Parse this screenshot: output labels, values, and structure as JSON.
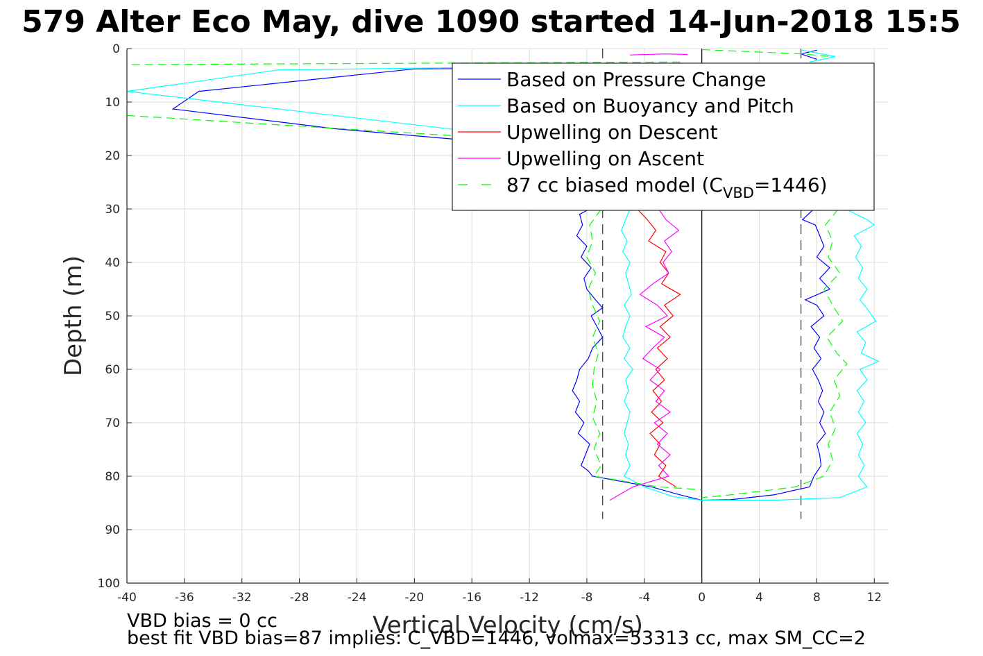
{
  "chart_data": {
    "type": "line",
    "title": "579 Alter Eco May, dive 1090 started 14-Jun-2018 15:5",
    "xlabel": "Vertical Velocity (cm/s)",
    "ylabel": "Depth (m)",
    "xlim": [
      -40,
      13
    ],
    "ylim": [
      0,
      100
    ],
    "y_reversed": true,
    "grid": true,
    "legend_position": "top-right",
    "xticks": [
      -40,
      -36,
      -32,
      -28,
      -24,
      -20,
      -16,
      -12,
      -8,
      -4,
      0,
      4,
      8,
      12
    ],
    "yticks": [
      0,
      10,
      20,
      30,
      40,
      50,
      60,
      70,
      80,
      90,
      100
    ],
    "reference_lines": {
      "vertical_solid": [
        0
      ],
      "vertical_dashed": [
        -6.9,
        6.9
      ]
    },
    "legend": {
      "items": [
        {
          "label": "Based on Pressure Change",
          "color": "#0000ff",
          "dash": "solid"
        },
        {
          "label": "Based on Buoyancy and Pitch",
          "color": "#00ffff",
          "dash": "solid"
        },
        {
          "label": "Upwelling on Descent",
          "color": "#ff0000",
          "dash": "solid"
        },
        {
          "label": "Upwelling on Ascent",
          "color": "#ff00ff",
          "dash": "solid"
        },
        {
          "label_main": "87 cc biased model (C",
          "label_sub": "VBD",
          "label_tail": "=1446)",
          "color": "#00ff00",
          "dash": "dashed"
        }
      ]
    },
    "series": [
      {
        "name": "Based on Pressure Change",
        "color": "#0000ff",
        "dash": "solid",
        "segments": [
          [
            [
              -1.5,
              3.5
            ],
            [
              -20,
              3.8
            ],
            [
              -35,
              8
            ],
            [
              -36.8,
              11.3
            ],
            [
              -25.5,
              15
            ],
            [
              -17,
              17
            ]
          ],
          [
            [
              -7.8,
              30
            ],
            [
              -8.5,
              31
            ],
            [
              -8.3,
              33
            ],
            [
              -8.7,
              35
            ],
            [
              -8.0,
              37
            ],
            [
              -8.4,
              39
            ],
            [
              -7.7,
              41
            ],
            [
              -8.2,
              43
            ],
            [
              -8.0,
              45
            ],
            [
              -7.4,
              47
            ],
            [
              -6.9,
              48.5
            ],
            [
              -7.7,
              50
            ],
            [
              -7.3,
              52
            ],
            [
              -6.9,
              54
            ],
            [
              -7.6,
              56
            ],
            [
              -7.9,
              58
            ],
            [
              -8.5,
              60
            ],
            [
              -8.7,
              62
            ],
            [
              -9.0,
              64
            ],
            [
              -8.5,
              66
            ],
            [
              -8.8,
              68
            ],
            [
              -8.2,
              70
            ],
            [
              -8.6,
              72
            ],
            [
              -7.8,
              74
            ],
            [
              -8.1,
              76
            ],
            [
              -8.4,
              78
            ],
            [
              -7.9,
              79
            ],
            [
              -7.6,
              80
            ],
            [
              -3.5,
              82
            ],
            [
              -1.5,
              83.5
            ],
            [
              0,
              84.5
            ]
          ],
          [
            [
              8.0,
              0.3
            ],
            [
              6.9,
              1.0
            ],
            [
              8.0,
              2.0
            ]
          ],
          [
            [
              7.8,
              30
            ],
            [
              7.0,
              32
            ],
            [
              7.9,
              33
            ],
            [
              8.2,
              35
            ],
            [
              8.5,
              37
            ],
            [
              8.0,
              39
            ],
            [
              8.9,
              41
            ],
            [
              8.2,
              43
            ],
            [
              8.9,
              45
            ],
            [
              7.2,
              47
            ],
            [
              8.0,
              48
            ],
            [
              8.5,
              50
            ],
            [
              7.6,
              52
            ],
            [
              8.2,
              54
            ],
            [
              7.8,
              56
            ],
            [
              8.3,
              58
            ],
            [
              7.7,
              60
            ],
            [
              8.1,
              62
            ],
            [
              8.4,
              64
            ],
            [
              8.1,
              66
            ],
            [
              8.5,
              68
            ],
            [
              8.2,
              70
            ],
            [
              8.6,
              72
            ],
            [
              8.0,
              74
            ],
            [
              8.2,
              76
            ],
            [
              8.3,
              78
            ],
            [
              7.8,
              80
            ],
            [
              7.5,
              82
            ],
            [
              5.0,
              83.5
            ],
            [
              2.0,
              84.4
            ],
            [
              0,
              84.5
            ]
          ]
        ]
      },
      {
        "name": "Based on Buoyancy and Pitch",
        "color": "#00ffff",
        "dash": "solid",
        "segments": [
          [
            [
              -1.5,
              3.0
            ],
            [
              -29.5,
              4.0
            ],
            [
              -40,
              8
            ],
            [
              -16,
              15.5
            ]
          ],
          [
            [
              -5.0,
              30
            ],
            [
              -5.3,
              32
            ],
            [
              -5.6,
              34
            ],
            [
              -5.2,
              36
            ],
            [
              -5.5,
              38
            ],
            [
              -5.0,
              40
            ],
            [
              -5.3,
              42
            ],
            [
              -5.1,
              44
            ],
            [
              -4.9,
              46
            ],
            [
              -5.4,
              48
            ],
            [
              -5.0,
              50
            ],
            [
              -5.3,
              52
            ],
            [
              -5.5,
              54
            ],
            [
              -5.0,
              56
            ],
            [
              -5.4,
              58
            ],
            [
              -4.8,
              60
            ],
            [
              -5.3,
              62
            ],
            [
              -5.1,
              64
            ],
            [
              -5.4,
              66
            ],
            [
              -5.0,
              68
            ],
            [
              -5.2,
              70
            ],
            [
              -5.4,
              72
            ],
            [
              -5.1,
              74
            ],
            [
              -5.3,
              76
            ],
            [
              -5.0,
              78
            ],
            [
              -5.4,
              80
            ],
            [
              -4.0,
              82
            ],
            [
              -2.0,
              83.8
            ],
            [
              0,
              84.5
            ]
          ],
          [
            [
              7.0,
              0.3
            ],
            [
              9.3,
              1.5
            ],
            [
              7.5,
              2.5
            ]
          ],
          [
            [
              10.0,
              30
            ],
            [
              11.5,
              32
            ],
            [
              12.0,
              33
            ],
            [
              10.6,
              35
            ],
            [
              11.1,
              37
            ],
            [
              10.7,
              39
            ],
            [
              11.2,
              41
            ],
            [
              10.9,
              43
            ],
            [
              11.5,
              45
            ],
            [
              11.0,
              47
            ],
            [
              11.6,
              49
            ],
            [
              12.1,
              51
            ],
            [
              10.8,
              53
            ],
            [
              11.4,
              55
            ],
            [
              11.1,
              57
            ],
            [
              12.3,
              58.5
            ],
            [
              11.0,
              60
            ],
            [
              11.5,
              62
            ],
            [
              10.8,
              64
            ],
            [
              11.3,
              66
            ],
            [
              10.9,
              68
            ],
            [
              11.4,
              70
            ],
            [
              10.8,
              72
            ],
            [
              11.2,
              74
            ],
            [
              10.9,
              76
            ],
            [
              11.3,
              78
            ],
            [
              10.9,
              80
            ],
            [
              11.5,
              82
            ],
            [
              9.6,
              84
            ],
            [
              5.0,
              84.5
            ],
            [
              0,
              84.5
            ]
          ]
        ]
      },
      {
        "name": "Upwelling on Descent",
        "color": "#ff0000",
        "dash": "solid",
        "segments": [
          [
            [
              -4.5,
              30
            ],
            [
              -3.8,
              32
            ],
            [
              -3.2,
              34
            ],
            [
              -3.7,
              36
            ],
            [
              -2.5,
              38
            ],
            [
              -2.9,
              40
            ],
            [
              -2.3,
              42
            ],
            [
              -2.8,
              44
            ],
            [
              -1.5,
              46
            ],
            [
              -2.6,
              48
            ],
            [
              -2.0,
              50
            ],
            [
              -2.9,
              52
            ],
            [
              -2.2,
              54
            ],
            [
              -3.1,
              56
            ],
            [
              -2.4,
              58
            ],
            [
              -3.2,
              60
            ],
            [
              -2.6,
              62
            ],
            [
              -3.4,
              64
            ],
            [
              -2.8,
              66
            ],
            [
              -3.5,
              68
            ],
            [
              -2.7,
              70
            ],
            [
              -3.6,
              72
            ],
            [
              -2.9,
              74
            ],
            [
              -3.3,
              76
            ],
            [
              -2.5,
              78
            ],
            [
              -3.0,
              80
            ],
            [
              -1.8,
              82
            ]
          ]
        ]
      },
      {
        "name": "Upwelling on Ascent",
        "color": "#ff00ff",
        "dash": "solid",
        "segments": [
          [
            [
              -5.0,
              1.2
            ],
            [
              -2.5,
              1.0
            ],
            [
              -1.0,
              1.1
            ]
          ],
          [
            [
              -3.0,
              30
            ],
            [
              -2.5,
              32
            ],
            [
              -1.6,
              34
            ],
            [
              -2.6,
              36
            ],
            [
              -2.1,
              38
            ],
            [
              -2.7,
              40
            ],
            [
              -2.3,
              42
            ],
            [
              -3.4,
              44
            ],
            [
              -4.3,
              46
            ],
            [
              -3.1,
              48
            ],
            [
              -2.4,
              50
            ],
            [
              -3.9,
              52
            ],
            [
              -2.6,
              54
            ],
            [
              -3.4,
              56
            ],
            [
              -4.1,
              58
            ],
            [
              -2.9,
              60
            ],
            [
              -3.6,
              62
            ],
            [
              -2.6,
              64
            ],
            [
              -3.2,
              66
            ],
            [
              -2.2,
              68
            ],
            [
              -3.3,
              70
            ],
            [
              -2.4,
              72
            ],
            [
              -3.1,
              74
            ],
            [
              -2.2,
              76
            ],
            [
              -3.0,
              78
            ],
            [
              -2.3,
              80
            ],
            [
              -4.8,
              82
            ],
            [
              -6.4,
              84.5
            ]
          ]
        ]
      },
      {
        "name": "87 cc biased model (C_VBD=1446)",
        "color": "#00ff00",
        "dash": "dashed",
        "segments": [
          [
            [
              -1.5,
              2.5
            ],
            [
              -40,
              3.0
            ]
          ],
          [
            [
              -40,
              12.5
            ],
            [
              -16,
              16.5
            ]
          ],
          [
            [
              -7.0,
              30
            ],
            [
              -7.8,
              33
            ],
            [
              -7.6,
              36
            ],
            [
              -8.0,
              39
            ],
            [
              -7.4,
              42
            ],
            [
              -7.9,
              45
            ],
            [
              -7.6,
              48
            ],
            [
              -7.1,
              51
            ],
            [
              -7.6,
              54
            ],
            [
              -7.2,
              57
            ],
            [
              -7.5,
              60
            ],
            [
              -7.6,
              63
            ],
            [
              -7.3,
              66
            ],
            [
              -7.6,
              69
            ],
            [
              -7.1,
              72
            ],
            [
              -7.5,
              75
            ],
            [
              -7.0,
              78
            ],
            [
              -7.5,
              80
            ],
            [
              -3.0,
              82
            ],
            [
              0,
              82.5
            ]
          ],
          [
            [
              0,
              0.2
            ],
            [
              7.0,
              1.0
            ],
            [
              9.0,
              1.5
            ]
          ],
          [
            [
              9.5,
              30
            ],
            [
              8.6,
              33
            ],
            [
              9.1,
              36
            ],
            [
              8.8,
              39
            ],
            [
              9.6,
              42
            ],
            [
              8.5,
              45
            ],
            [
              9.1,
              48
            ],
            [
              9.8,
              51
            ],
            [
              8.7,
              54
            ],
            [
              9.4,
              57
            ],
            [
              10.1,
              59
            ],
            [
              9.2,
              62
            ],
            [
              9.6,
              65
            ],
            [
              8.9,
              68
            ],
            [
              9.3,
              71
            ],
            [
              8.8,
              74
            ],
            [
              9.1,
              77
            ],
            [
              8.5,
              80
            ],
            [
              6.5,
              82
            ],
            [
              2.0,
              83.5
            ],
            [
              0,
              84.0
            ]
          ]
        ]
      }
    ],
    "annotations": [
      "VBD bias = 0 cc",
      "best fit VBD bias=87 implies: C_VBD=1446, volmax=53313 cc, max SM_CC=2"
    ]
  }
}
